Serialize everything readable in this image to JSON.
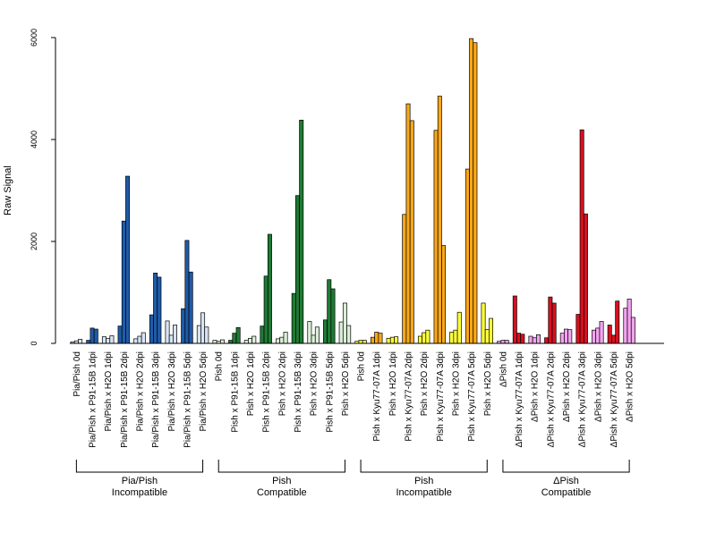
{
  "chart_data": {
    "type": "bar",
    "ylabel": "Raw Signal",
    "ylim": [
      0,
      6000
    ],
    "yticks": [
      0,
      2000,
      4000,
      6000
    ],
    "grid": false,
    "legend": "none",
    "bars_per_category": 3,
    "categories": [
      "Pia/Pish 0d",
      "Pia/Pish x P91-15B 1dpi",
      "Pia/Pish x H2O 1dpi",
      "Pia/Pish x P91-15B 2dpi",
      "Pia/Pish x H2O 2dpi",
      "Pia/Pish x P91-15B 3dpi",
      "Pia/Pish x H2O 3dpi",
      "Pia/Pish x P91-15B 5dpi",
      "Pia/Pish x H2O 5dpi",
      "Pish 0d",
      "Pish x P91-15B 1dpi",
      "Pish x H2O 1dpi",
      "Pish x P91-15B 2dpi",
      "Pish x H2O 2dpi",
      "Pish x P91-15B 3dpi",
      "Pish x H2O 3dpi",
      "Pish x P91-15B 5dpi",
      "Pish x H2O 5dpi",
      "Pish 0d",
      "Pish x Kyu77-07A 1dpi",
      "Pish x H2O 1dpi",
      "Pish x Kyu77-07A 2dpi",
      "Pish x H2O 2dpi",
      "Pish x Kyu77-07A 3dpi",
      "Pish x H2O 3dpi",
      "Pish x Kyu77-07A 5dpi",
      "Pish x H2O 5dpi",
      "ΔPish 0d",
      "ΔPish x Kyu77-07A 1dpi",
      "ΔPish x H2O 1dpi",
      "ΔPish x Kyu77-07A 2dpi",
      "ΔPish x H2O 2dpi",
      "ΔPish x Kyu77-07A 3dpi",
      "ΔPish x H2O 3dpi",
      "ΔPish x Kyu77-07A 5dpi",
      "ΔPish x H2O 5dpi"
    ],
    "values": [
      [
        30,
        50,
        80
      ],
      [
        60,
        300,
        280
      ],
      [
        130,
        100,
        150
      ],
      [
        340,
        2400,
        3280
      ],
      [
        90,
        140,
        210
      ],
      [
        560,
        1380,
        1300
      ],
      [
        440,
        160,
        360
      ],
      [
        680,
        2020,
        1400
      ],
      [
        350,
        600,
        320
      ],
      [
        60,
        40,
        70
      ],
      [
        60,
        200,
        310
      ],
      [
        60,
        100,
        140
      ],
      [
        340,
        1320,
        2140
      ],
      [
        90,
        120,
        220
      ],
      [
        980,
        2900,
        4380
      ],
      [
        430,
        160,
        320
      ],
      [
        460,
        1250,
        1070
      ],
      [
        420,
        790,
        350
      ],
      [
        40,
        60,
        60
      ],
      [
        120,
        220,
        200
      ],
      [
        100,
        120,
        130
      ],
      [
        2530,
        4700,
        4370
      ],
      [
        140,
        210,
        260
      ],
      [
        4180,
        4850,
        1920
      ],
      [
        220,
        260,
        610
      ],
      [
        3420,
        5980,
        5900
      ],
      [
        790,
        270,
        490
      ],
      [
        40,
        60,
        60
      ],
      [
        930,
        200,
        180
      ],
      [
        140,
        110,
        170
      ],
      [
        110,
        910,
        790
      ],
      [
        200,
        280,
        270
      ],
      [
        570,
        4190,
        2540
      ],
      [
        260,
        300,
        430
      ],
      [
        360,
        160,
        830
      ],
      [
        690,
        870,
        510
      ]
    ],
    "groups": [
      {
        "label_line1": "Pia/Pish",
        "label_line2": "Incompatible",
        "start": 0,
        "end": 8,
        "infected_color": "#1f5ba8",
        "mock_color": "#d6e4f3"
      },
      {
        "label_line1": "Pish",
        "label_line2": "Compatible",
        "start": 9,
        "end": 17,
        "infected_color": "#207a35",
        "mock_color": "#dcefd8"
      },
      {
        "label_line1": "Pish",
        "label_line2": "Incompatible",
        "start": 18,
        "end": 26,
        "infected_color": "#f8a81a",
        "mock_color": "#ffff3a"
      },
      {
        "label_line1": "ΔPish",
        "label_line2": "Compatible",
        "start": 27,
        "end": 35,
        "infected_color": "#d8101f",
        "mock_color": "#f4a3f0"
      }
    ]
  }
}
